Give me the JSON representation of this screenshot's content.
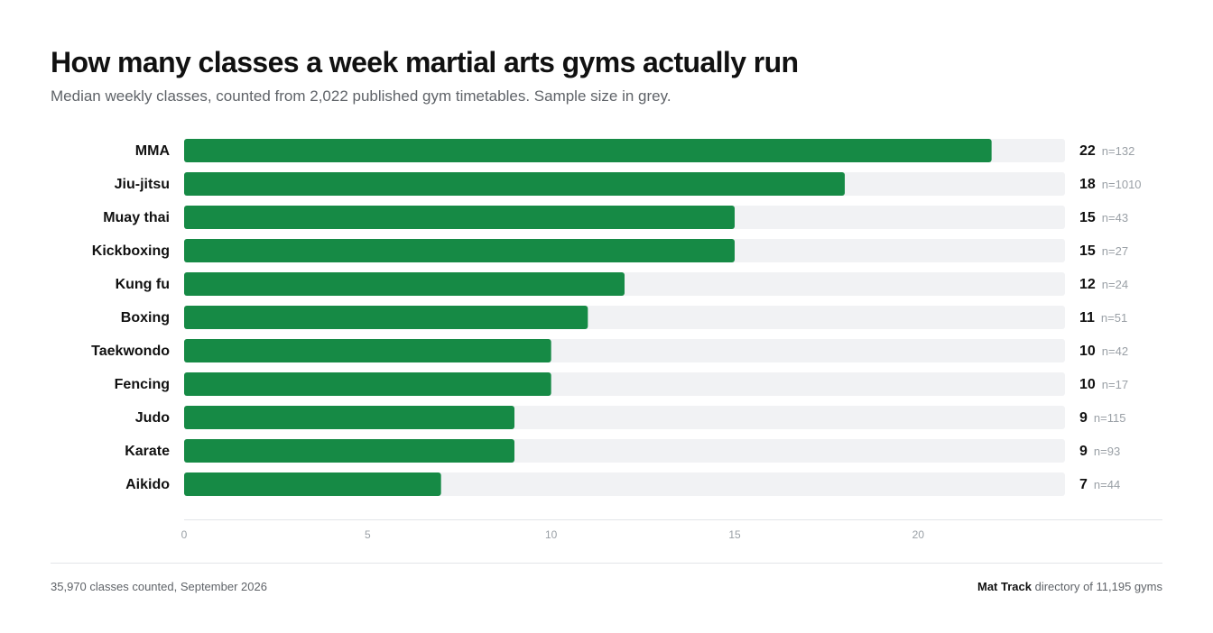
{
  "header": {
    "title": "How many classes a week martial arts gyms actually run",
    "subtitle": "Median weekly classes, counted from 2,022 published gym timetables. Sample size in grey."
  },
  "colors": {
    "bar": "#168a45",
    "track": "#f1f2f4",
    "axis": "#e3e5e8"
  },
  "chart_data": {
    "type": "bar",
    "orientation": "horizontal",
    "categories": [
      "MMA",
      "Jiu-jitsu",
      "Muay thai",
      "Kickboxing",
      "Kung fu",
      "Boxing",
      "Taekwondo",
      "Fencing",
      "Judo",
      "Karate",
      "Aikido"
    ],
    "values": [
      22,
      18,
      15,
      15,
      12,
      11,
      10,
      10,
      9,
      9,
      7
    ],
    "sample_labels": [
      "n=132",
      "n=1010",
      "n=43",
      "n=27",
      "n=24",
      "n=51",
      "n=42",
      "n=17",
      "n=115",
      "n=93",
      "n=44"
    ],
    "xlim": [
      0,
      24
    ],
    "x_ticks": [
      0,
      5,
      10,
      15,
      20
    ],
    "grid": false
  },
  "footer": {
    "note": "35,970 classes counted, September 2026",
    "brand": "Mat Track",
    "source_text": "directory of 11,195 gyms"
  }
}
